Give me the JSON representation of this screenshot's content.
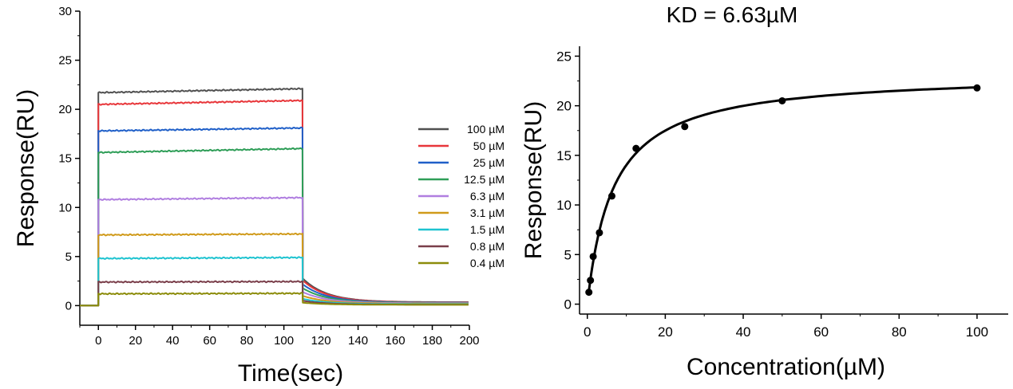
{
  "chart_data": [
    {
      "type": "line",
      "title": "",
      "xlabel": "Time(sec)",
      "ylabel": "Response(RU)",
      "xlim": [
        -10,
        200
      ],
      "ylim": [
        -2,
        30
      ],
      "xticks": [
        0,
        20,
        40,
        60,
        80,
        100,
        120,
        140,
        160,
        180,
        200
      ],
      "yticks": [
        0,
        5,
        10,
        15,
        20,
        25,
        30
      ],
      "association_end": 110,
      "grid": false,
      "legend": "right",
      "series": [
        {
          "name": "100 µM",
          "color": "#505050",
          "plateau_start": 21.7,
          "plateau_end": 22.1,
          "dissociation_start": 2.8,
          "end": 0.35
        },
        {
          "name": "50 µM",
          "color": "#e8363a",
          "plateau_start": 20.5,
          "plateau_end": 20.9,
          "dissociation_start": 2.6,
          "end": 0.33
        },
        {
          "name": "25 µM",
          "color": "#1f5fc8",
          "plateau_start": 17.8,
          "plateau_end": 18.1,
          "dissociation_start": 2.2,
          "end": 0.3
        },
        {
          "name": "12.5 µM",
          "color": "#2f9e58",
          "plateau_start": 15.6,
          "plateau_end": 16.0,
          "dissociation_start": 1.8,
          "end": 0.28
        },
        {
          "name": "6.3 µM",
          "color": "#b07ee0",
          "plateau_start": 10.8,
          "plateau_end": 11.0,
          "dissociation_start": 1.4,
          "end": 0.25
        },
        {
          "name": "3.1 µM",
          "color": "#d09a1a",
          "plateau_start": 7.2,
          "plateau_end": 7.3,
          "dissociation_start": 1.0,
          "end": 0.2
        },
        {
          "name": "1.5 µM",
          "color": "#1ec3d0",
          "plateau_start": 4.8,
          "plateau_end": 4.9,
          "dissociation_start": 0.7,
          "end": 0.15
        },
        {
          "name": "0.8 µM",
          "color": "#7a3e4a",
          "plateau_start": 2.4,
          "plateau_end": 2.45,
          "dissociation_start": 0.5,
          "end": 0.1
        },
        {
          "name": "0.4 µM",
          "color": "#8c8c0a",
          "plateau_start": 1.2,
          "plateau_end": 1.25,
          "dissociation_start": 0.3,
          "end": 0.08
        }
      ]
    },
    {
      "type": "scatter",
      "title": "KD = 6.63µM",
      "xlabel": "Concentration(µM)",
      "ylabel": "Response(RU)",
      "xlim": [
        -2,
        108
      ],
      "ylim": [
        -1,
        26
      ],
      "xticks": [
        0,
        20,
        40,
        60,
        80,
        100
      ],
      "yticks": [
        0,
        5,
        10,
        15,
        20,
        25
      ],
      "grid": false,
      "series": [
        {
          "x": [
            0.4,
            0.8,
            1.5,
            3.1,
            6.3,
            12.5,
            25,
            50,
            100
          ],
          "y": [
            1.2,
            2.4,
            4.8,
            7.2,
            10.9,
            15.7,
            17.9,
            20.5,
            21.8
          ]
        }
      ],
      "fit": {
        "model": "steady-state affinity",
        "Rmax": 23.3,
        "KD": 6.63
      }
    }
  ]
}
